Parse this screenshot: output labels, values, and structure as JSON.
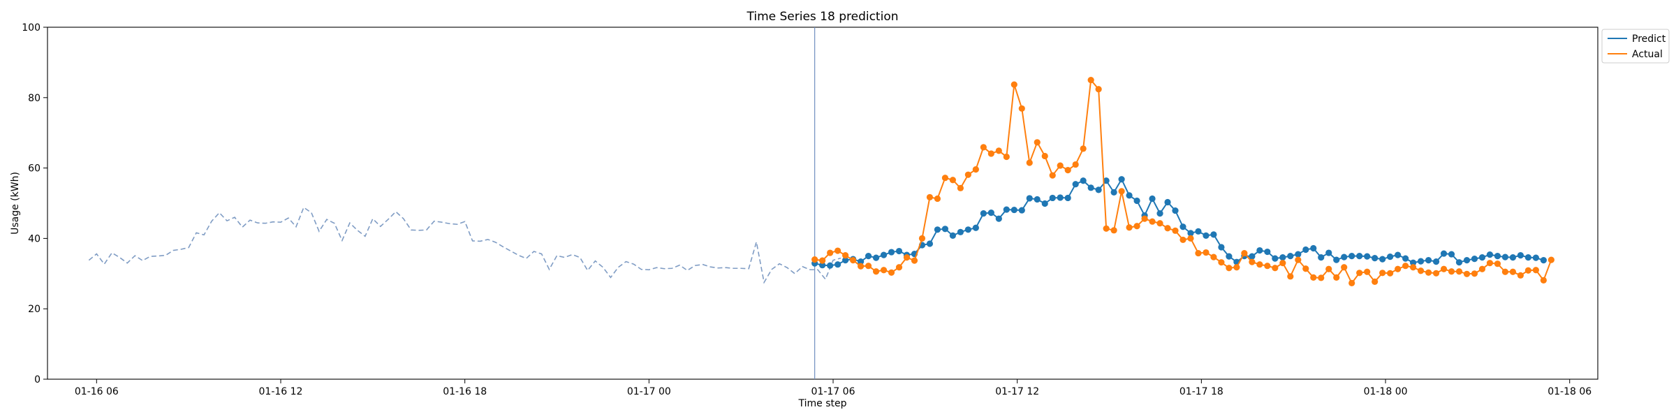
{
  "chart_data": {
    "type": "line",
    "title": "Time Series 18 prediction",
    "xlabel": "Time step",
    "ylabel": "Usage (kWh)",
    "ylim": [
      0,
      100
    ],
    "yticks": [
      0,
      20,
      40,
      60,
      80,
      100
    ],
    "xlim": [
      "01-16 04:24",
      "01-18 06:55"
    ],
    "xticks": [
      {
        "label": "01-16 06",
        "time": "01-16 06:00"
      },
      {
        "label": "01-16 12",
        "time": "01-16 12:00"
      },
      {
        "label": "01-16 18",
        "time": "01-16 18:00"
      },
      {
        "label": "01-17 00",
        "time": "01-17 00:00"
      },
      {
        "label": "01-17 06",
        "time": "01-17 06:00"
      },
      {
        "label": "01-17 12",
        "time": "01-17 12:00"
      },
      {
        "label": "01-17 18",
        "time": "01-17 18:00"
      },
      {
        "label": "01-18 00",
        "time": "01-18 00:00"
      },
      {
        "label": "01-18 06",
        "time": "01-18 06:00"
      }
    ],
    "grid": false,
    "legend_position": "upper-right-outside",
    "history": {
      "start": "01-16 05:45",
      "step_minutes": 15,
      "color": "#7f9cc4",
      "style": "dashed",
      "values": [
        33.8,
        35.6,
        32.7,
        35.9,
        34.6,
        33.0,
        35.1,
        33.7,
        34.9,
        35.0,
        35.2,
        36.6,
        36.9,
        37.4,
        41.6,
        41.0,
        44.9,
        47.3,
        45.0,
        46.0,
        43.2,
        45.2,
        44.4,
        44.3,
        44.7,
        44.6,
        45.8,
        43.3,
        48.8,
        47.3,
        42.0,
        45.4,
        44.3,
        39.4,
        44.4,
        42.3,
        40.6,
        45.6,
        43.4,
        45.4,
        47.6,
        45.6,
        42.4,
        42.3,
        42.4,
        44.9,
        44.6,
        44.2,
        44.0,
        44.8,
        39.3,
        39.2,
        39.7,
        38.9,
        37.6,
        36.4,
        35.2,
        34.3,
        36.3,
        35.6,
        31.2,
        35.1,
        34.6,
        35.4,
        34.6,
        30.9,
        33.6,
        31.8,
        28.9,
        31.8,
        33.4,
        32.7,
        31.2,
        31.1,
        31.7,
        31.4,
        31.5,
        32.4,
        30.9,
        32.3,
        32.6,
        31.9,
        31.6,
        31.7,
        31.5,
        31.5,
        31.4,
        39.0,
        27.5,
        31.2,
        32.8,
        31.7,
        30.0,
        32.0,
        31.1,
        31.1,
        28.4,
        33.8,
        34.4
      ]
    },
    "split_time": "01-17 05:24",
    "split_color": "#6f8ebf",
    "forecast": {
      "start": "01-17 05:24",
      "step_minutes": 15,
      "series": [
        {
          "name": "Predict",
          "color": "#1f77b4",
          "values": [
            32.9,
            32.4,
            32.3,
            32.6,
            33.8,
            34.1,
            33.4,
            35.0,
            34.5,
            35.3,
            36.1,
            36.4,
            35.3,
            35.6,
            38.1,
            38.5,
            42.5,
            42.7,
            40.8,
            41.8,
            42.5,
            43.0,
            47.1,
            47.3,
            45.6,
            48.2,
            48.1,
            48.0,
            51.4,
            51.1,
            49.9,
            51.5,
            51.6,
            51.5,
            55.4,
            56.4,
            54.4,
            53.8,
            56.4,
            53.1,
            56.8,
            52.2,
            50.7,
            46.5,
            51.3,
            47.1,
            50.3,
            47.9,
            43.3,
            41.5,
            42.0,
            40.8,
            41.1,
            37.5,
            34.9,
            33.3,
            35.0,
            34.9,
            36.6,
            36.2,
            34.3,
            34.6,
            35.0,
            35.5,
            36.8,
            37.2,
            34.6,
            35.9,
            33.9,
            34.7,
            35.0,
            35.0,
            34.9,
            34.4,
            34.1,
            34.8,
            35.3,
            34.3,
            33.1,
            33.5,
            33.8,
            33.4,
            35.7,
            35.5,
            33.2,
            33.8,
            34.2,
            34.6,
            35.4,
            35.0,
            34.7,
            34.6,
            35.2,
            34.6,
            34.5,
            33.8
          ]
        },
        {
          "name": "Actual",
          "color": "#ff7f0e",
          "values": [
            34.0,
            33.7,
            35.9,
            36.5,
            35.2,
            33.8,
            32.1,
            32.2,
            30.6,
            31.0,
            30.3,
            31.8,
            34.6,
            33.7,
            40.0,
            51.7,
            51.3,
            57.2,
            56.6,
            54.3,
            58.1,
            59.6,
            65.9,
            64.1,
            64.9,
            63.2,
            83.7,
            76.9,
            61.5,
            67.3,
            63.4,
            57.9,
            60.7,
            59.4,
            61.0,
            65.5,
            85.0,
            82.4,
            42.8,
            42.3,
            53.4,
            43.1,
            43.5,
            45.6,
            44.8,
            44.3,
            42.9,
            42.2,
            39.6,
            40.0,
            35.8,
            36.0,
            34.7,
            33.2,
            31.6,
            31.8,
            35.8,
            33.3,
            32.6,
            32.2,
            31.6,
            33.0,
            29.2,
            33.9,
            31.4,
            28.9,
            28.8,
            31.3,
            28.9,
            31.8,
            27.3,
            30.2,
            30.5,
            27.7,
            30.2,
            30.1,
            31.3,
            32.2,
            31.8,
            30.8,
            30.3,
            30.1,
            31.3,
            30.6,
            30.6,
            29.9,
            30.0,
            31.3,
            33.0,
            32.8,
            30.5,
            30.5,
            29.5,
            30.9,
            31.0,
            28.1,
            33.9
          ]
        }
      ]
    }
  }
}
